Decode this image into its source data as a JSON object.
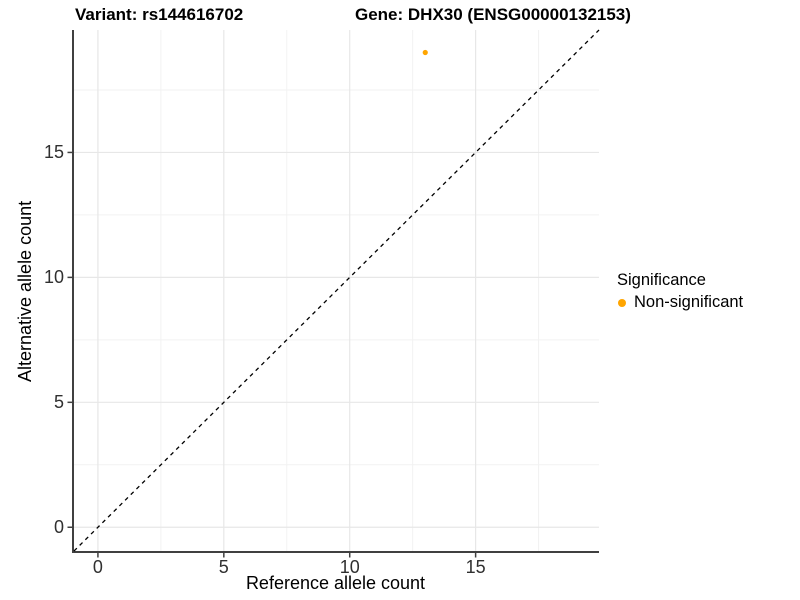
{
  "titles": {
    "variant": "Variant: rs144616702",
    "gene": "Gene: DHX30 (ENSG00000132153)"
  },
  "axes": {
    "x_label": "Reference allele count",
    "y_label": "Alternative allele count"
  },
  "legend": {
    "title": "Significance",
    "items": [
      {
        "label": "Non-significant",
        "color": "#FFA500"
      }
    ]
  },
  "chart_data": {
    "type": "scatter",
    "title": "Variant: rs144616702   Gene: DHX30 (ENSG00000132153)",
    "xlabel": "Reference allele count",
    "ylabel": "Alternative allele count",
    "xlim": [
      -0.95,
      19.9
    ],
    "ylim": [
      -0.95,
      19.9
    ],
    "x_ticks": [
      0,
      5,
      10,
      15
    ],
    "y_ticks": [
      0,
      5,
      10,
      15
    ],
    "x_minor_ticks": [
      2.5,
      7.5,
      12.5,
      17.5
    ],
    "y_minor_ticks": [
      2.5,
      7.5,
      12.5,
      17.5
    ],
    "grid": true,
    "legend_position": "right",
    "series": [
      {
        "name": "Non-significant",
        "color": "#FFA500",
        "points": [
          {
            "x": 13,
            "y": 19
          }
        ]
      }
    ],
    "reference_line": {
      "type": "identity",
      "equation": "y = x",
      "style": "dashed",
      "color": "#000000"
    }
  },
  "style": {
    "point_color": "#FFA500",
    "grid_major": "#e7e7e7",
    "grid_minor": "#f2f2f2",
    "axis_line": "#404040",
    "tick_label_color": "#303030",
    "dashed_line": "#000000"
  }
}
